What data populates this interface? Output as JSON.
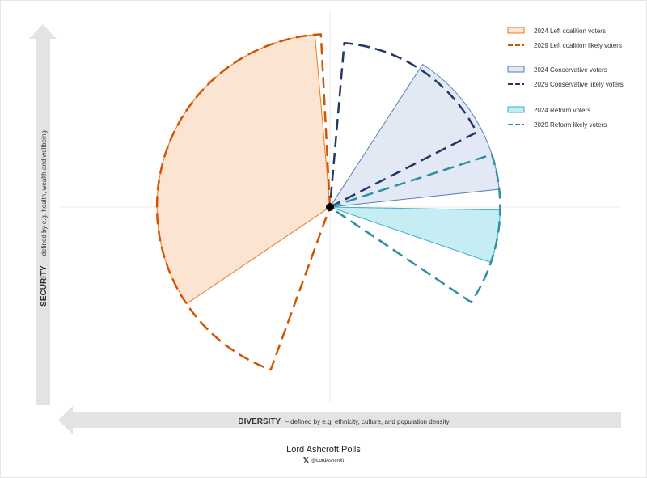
{
  "chart_data": {
    "type": "pie",
    "axes": {
      "y_label_bold": "SECURITY",
      "y_label_rest": "– defined by e.g. health, wealth and wellbeing",
      "x_label_bold": "DIVERSITY",
      "x_label_rest": "– defined by e.g. ethnicity, culture, and population density"
    },
    "legend_position": "top-right",
    "series": [
      {
        "name": "2024 Left coalition voters",
        "style": "filled",
        "color": "#E67E22",
        "fill": "#FCE4D2",
        "wedges": [
          {
            "start_deg": 95,
            "end_deg": 214,
            "radius": 6.2
          }
        ]
      },
      {
        "name": "2029 Left coalition likely voters",
        "style": "dashed",
        "color": "#D35400",
        "wedges": [
          {
            "start_deg": 93,
            "end_deg": 250,
            "radius": 6.2
          }
        ]
      },
      {
        "name": "2024 Conservative voters",
        "style": "filled",
        "color": "#5B7DB5",
        "fill": "#E2E8F4",
        "wedges": [
          {
            "start_deg": 6,
            "end_deg": 57,
            "radius": 6.1
          }
        ]
      },
      {
        "name": "2029 Conservative likely voters",
        "style": "dashed",
        "color": "#1F3864",
        "wedges": [
          {
            "start_deg": 27,
            "end_deg": 85,
            "radius": 5.9
          }
        ]
      },
      {
        "name": "2024 Reform voters",
        "style": "filled",
        "color": "#3BB0CC",
        "fill": "#C6EDF3",
        "wedges": [
          {
            "start_deg": -1,
            "end_deg": -19,
            "radius": 6.1
          }
        ]
      },
      {
        "name": "2029 Reform likely voters",
        "style": "dashed",
        "color": "#2E8FA3",
        "wedges": [
          {
            "start_deg": 18,
            "end_deg": -34,
            "radius": 6.1
          }
        ]
      }
    ]
  },
  "footer": {
    "source": "Lord Ashcroft Polls",
    "x_logo": "𝕏",
    "handle": "@LordAshcroft"
  }
}
